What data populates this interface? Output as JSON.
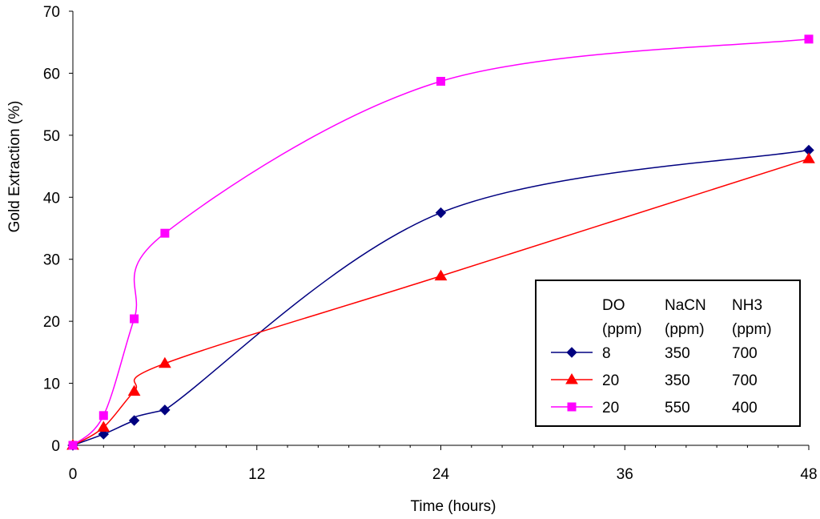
{
  "chart_data": {
    "type": "line",
    "xlabel": "Time (hours)",
    "ylabel": "Gold Extraction (%)",
    "xlim": [
      0,
      48
    ],
    "ylim": [
      0,
      70
    ],
    "xticks": [
      "0",
      "12",
      "24",
      "36",
      "48"
    ],
    "yticks": [
      "0",
      "10",
      "20",
      "30",
      "40",
      "50",
      "60",
      "70"
    ],
    "grid": false,
    "legend": {
      "placement": "bottom-right",
      "headers": [
        [
          "DO",
          "(ppm)"
        ],
        [
          "NaCN",
          "(ppm)"
        ],
        [
          "NH3",
          "(ppm)"
        ]
      ]
    },
    "series": [
      {
        "name": "8 / 350 / 700",
        "legend_values": [
          "8",
          "350",
          "700"
        ],
        "color": "#000080",
        "marker": "diamond",
        "x": [
          0,
          2,
          4,
          6,
          24,
          48
        ],
        "y": [
          0,
          1.8,
          4.0,
          5.7,
          37.5,
          47.6
        ]
      },
      {
        "name": "20 / 350 / 700",
        "legend_values": [
          "20",
          "350",
          "700"
        ],
        "color": "#ff0000",
        "marker": "triangle",
        "x": [
          0,
          2,
          4,
          6,
          24,
          48
        ],
        "y": [
          0,
          2.9,
          8.7,
          13.2,
          27.3,
          46.2
        ]
      },
      {
        "name": "20 / 550 / 400",
        "legend_values": [
          "20",
          "550",
          "400"
        ],
        "color": "#ff00ff",
        "marker": "square",
        "x": [
          0,
          2,
          4,
          6,
          24,
          48
        ],
        "y": [
          0,
          4.8,
          20.4,
          34.2,
          58.7,
          65.5
        ]
      }
    ]
  }
}
